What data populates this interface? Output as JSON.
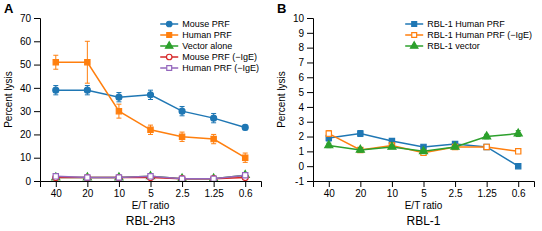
{
  "chart_data": [
    {
      "type": "line",
      "title": "RBL-2H3",
      "annotations": [
        "A"
      ],
      "x_label": "E/T ratio",
      "y_label": "Percent lysis",
      "categories": [
        "40",
        "20",
        "10",
        "5",
        "2.5",
        "1.25",
        "0.6"
      ],
      "ylim": [
        0,
        70
      ],
      "yticks": [
        0,
        10,
        20,
        30,
        40,
        50,
        60,
        70
      ],
      "legend": "upper-right",
      "series": [
        {
          "name": "Mouse PRF",
          "values": [
            39,
            39,
            36,
            37,
            30,
            27,
            23
          ],
          "errors": [
            2,
            2,
            2,
            2,
            2,
            2,
            1
          ],
          "marker": "circle"
        },
        {
          "name": "Human PRF",
          "values": [
            51,
            51,
            30,
            22,
            19,
            18,
            10
          ],
          "errors": [
            3,
            9,
            3,
            2,
            2,
            2,
            2
          ],
          "marker": "square"
        },
        {
          "name": "Vector alone",
          "values": [
            1.5,
            1.5,
            1.5,
            2.0,
            1.0,
            1.0,
            2.5
          ],
          "errors": [
            0.3,
            0.3,
            0.3,
            0.3,
            0.3,
            0.3,
            0.5
          ],
          "marker": "triangle"
        },
        {
          "name": "Mouse PRF (−IgE)",
          "values": [
            1.5,
            1.5,
            1.5,
            1.5,
            1.0,
            1.0,
            1.5
          ],
          "errors": [
            0.3,
            0.3,
            0.3,
            0.3,
            0.2,
            0.2,
            0.3
          ],
          "marker": "circle-open"
        },
        {
          "name": "Human PRF (−IgE)",
          "values": [
            2.0,
            1.5,
            1.5,
            2.0,
            1.0,
            1.0,
            2.5
          ],
          "errors": [
            0.3,
            0.3,
            0.3,
            0.3,
            0.2,
            0.2,
            0.5
          ],
          "marker": "square-open"
        }
      ]
    },
    {
      "type": "line",
      "title": "RBL-1",
      "annotations": [
        "B"
      ],
      "x_label": "E/T ratio",
      "y_label": "Percent lysis",
      "categories": [
        "40",
        "20",
        "10",
        "5",
        "2.5",
        "1.25",
        "0.6"
      ],
      "ylim": [
        -1,
        10
      ],
      "yticks": [
        -1,
        0,
        1,
        2,
        3,
        4,
        5,
        6,
        7,
        8,
        9,
        10
      ],
      "legend": "upper-right",
      "series": [
        {
          "name": "RBL-1 Human PRF",
          "values": [
            1.9,
            2.2,
            1.7,
            1.3,
            1.5,
            1.3,
            0.0
          ],
          "errors": [
            0.2,
            0.2,
            0.15,
            0.1,
            0.15,
            0.15,
            0.05
          ],
          "marker": "square"
        },
        {
          "name": "RBL-1 Human PRF (−IgE)",
          "values": [
            2.2,
            1.1,
            1.4,
            0.9,
            1.3,
            1.3,
            1.0
          ],
          "errors": [
            0.2,
            0.15,
            0.15,
            0.1,
            0.1,
            0.1,
            0.1
          ],
          "marker": "square-open"
        },
        {
          "name": "RBL-1 vector",
          "values": [
            1.4,
            1.1,
            1.3,
            1.0,
            1.3,
            2.0,
            2.2
          ],
          "errors": [
            0.15,
            0.15,
            0.1,
            0.1,
            0.1,
            0.15,
            0.2
          ],
          "marker": "triangle"
        }
      ]
    }
  ]
}
